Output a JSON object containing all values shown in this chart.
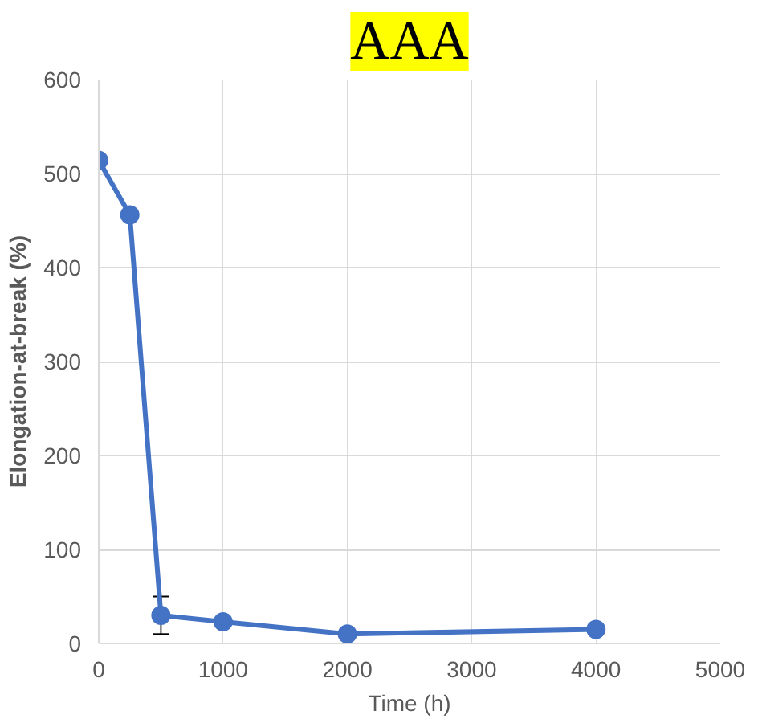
{
  "chart_data": {
    "type": "line",
    "title": "AAA",
    "xlabel": "Time (h)",
    "ylabel": "Elongation-at-break (%)",
    "x": [
      0,
      250,
      500,
      1000,
      2000,
      4000
    ],
    "series": [
      {
        "color": "#4472c4",
        "values": [
          514,
          456,
          30,
          23,
          10,
          15
        ],
        "errors": [
          null,
          null,
          20,
          null,
          null,
          null
        ]
      }
    ],
    "xlim": [
      0,
      5000
    ],
    "xticks": [
      0,
      1000,
      2000,
      3000,
      4000,
      5000
    ],
    "ylim": [
      0,
      600
    ],
    "yticks": [
      0,
      100,
      200,
      300,
      400,
      500,
      600
    ],
    "grid": true,
    "marker": "circle",
    "line_style": "solid"
  }
}
